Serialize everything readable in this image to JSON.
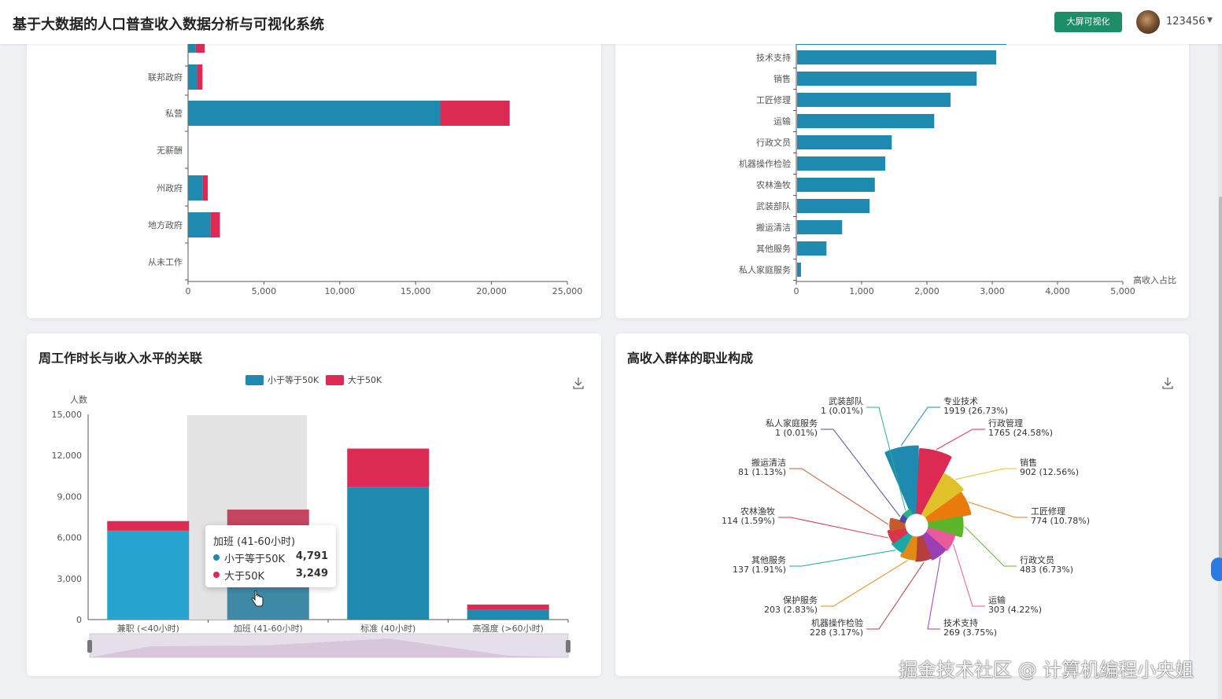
{
  "app": {
    "title": "基于大数据的人口普查收入数据分析与可视化系统",
    "big_screen_label": "大屏可视化",
    "user_name": "123456"
  },
  "colors": {
    "blue": "#1f8ab0",
    "red": "#dc2a55",
    "green_button": "#1e8e68"
  },
  "cards": {
    "work_class": {
      "chart_data": {
        "type": "bar",
        "orientation": "horizontal",
        "stacked": true,
        "categories": [
          "从未工作",
          "地方政府",
          "州政府",
          "无薪酬",
          "私营",
          "联邦政府",
          ""
        ],
        "series": [
          {
            "color": "#1f8ab0",
            "values": [
              10,
              1500,
              950,
              15,
              16600,
              600,
              500
            ]
          },
          {
            "color": "#dc2a55",
            "values": [
              0,
              600,
              350,
              0,
              4600,
              350,
              600
            ]
          }
        ],
        "xlim": [
          0,
          25000
        ],
        "xticks": [
          "0",
          "5,000",
          "10,000",
          "15,000",
          "20,000",
          "25,000"
        ]
      }
    },
    "occupation_ratio": {
      "chart_data": {
        "type": "bar",
        "orientation": "horizontal",
        "categories": [
          "私人家庭服务",
          "其他服务",
          "搬运清洁",
          "武装部队",
          "农林渔牧",
          "机器操作检验",
          "行政文员",
          "运输",
          "工匠修理",
          "销售",
          "技术支持"
        ],
        "values": [
          60,
          450,
          690,
          1110,
          1190,
          1350,
          1450,
          2100,
          2350,
          2750,
          3050
        ],
        "xlim": [
          0,
          5000
        ],
        "xticks": [
          "0",
          "1,000",
          "2,000",
          "3,000",
          "4,000",
          "5,000"
        ],
        "xlabel": "高收入占比"
      }
    },
    "hours": {
      "title": "周工作时长与收入水平的关联",
      "download_icon": "download-icon",
      "chart_data": {
        "type": "bar",
        "stacked": true,
        "categories": [
          "兼职 (<40小时)",
          "加班 (41-60小时)",
          "标准 (40小时)",
          "高强度 (>60小时)"
        ],
        "series": [
          {
            "name": "小于等于50K",
            "color": "#1f8ab0",
            "values": [
              6500,
              4791,
              9700,
              700
            ]
          },
          {
            "name": "大于50K",
            "color": "#dc2a55",
            "values": [
              700,
              3249,
              2800,
              400
            ]
          }
        ],
        "ylabel": "人数",
        "ylim": [
          0,
          15000
        ],
        "yticks": [
          "0",
          "3,000",
          "6,000",
          "9,000",
          "12,000",
          "15,000"
        ],
        "legend": "top"
      },
      "tooltip": {
        "title": "加班 (41-60小时)",
        "rows": [
          {
            "label": "小于等于50K",
            "value": "4,791",
            "color": "#1f8ab0"
          },
          {
            "label": "大于50K",
            "value": "3,249",
            "color": "#dc2a55"
          }
        ]
      }
    },
    "occupation_pie": {
      "title": "高收入群体的职业构成",
      "download_icon": "download-icon",
      "chart_data": {
        "type": "pie",
        "rose": true,
        "slices": [
          {
            "name": "专业技术",
            "value": 1919,
            "pct": "26.73%",
            "color": "#1f8ab0"
          },
          {
            "name": "行政管理",
            "value": 1765,
            "pct": "24.58%",
            "color": "#dc2a55"
          },
          {
            "name": "销售",
            "value": 902,
            "pct": "12.56%",
            "color": "#e0c12a"
          },
          {
            "name": "工匠修理",
            "value": 774,
            "pct": "10.78%",
            "color": "#ea7a0c"
          },
          {
            "name": "行政文员",
            "value": 483,
            "pct": "6.73%",
            "color": "#5cb528"
          },
          {
            "name": "运输",
            "value": 303,
            "pct": "4.22%",
            "color": "#e85a9a"
          },
          {
            "name": "技术支持",
            "value": 269,
            "pct": "3.75%",
            "color": "#9b3fb5"
          },
          {
            "name": "机器操作检验",
            "value": 228,
            "pct": "3.17%",
            "color": "#b83e3e"
          },
          {
            "name": "保护服务",
            "value": 203,
            "pct": "2.83%",
            "color": "#e08a16"
          },
          {
            "name": "其他服务",
            "value": 137,
            "pct": "1.91%",
            "color": "#18a8a8"
          },
          {
            "name": "农林渔牧",
            "value": 114,
            "pct": "1.59%",
            "color": "#d8344a"
          },
          {
            "name": "搬运清洁",
            "value": 81,
            "pct": "1.13%",
            "color": "#c85a2a"
          },
          {
            "name": "私人家庭服务",
            "value": 1,
            "pct": "0.01%",
            "color": "#4a48a8"
          },
          {
            "name": "武装部队",
            "value": 1,
            "pct": "0.01%",
            "color": "#2ab08a"
          }
        ]
      }
    }
  },
  "watermark": "掘金技术社区 @ 计算机编程小央姐"
}
